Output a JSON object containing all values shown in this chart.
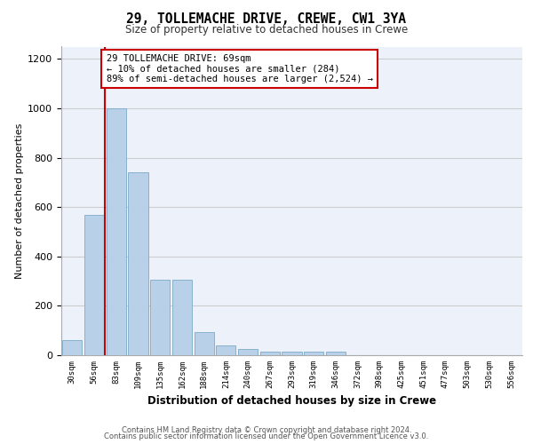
{
  "title1": "29, TOLLEMACHE DRIVE, CREWE, CW1 3YA",
  "title2": "Size of property relative to detached houses in Crewe",
  "xlabel": "Distribution of detached houses by size in Crewe",
  "ylabel": "Number of detached properties",
  "categories": [
    "30sqm",
    "56sqm",
    "83sqm",
    "109sqm",
    "135sqm",
    "162sqm",
    "188sqm",
    "214sqm",
    "240sqm",
    "267sqm",
    "293sqm",
    "319sqm",
    "346sqm",
    "372sqm",
    "398sqm",
    "425sqm",
    "451sqm",
    "477sqm",
    "503sqm",
    "530sqm",
    "556sqm"
  ],
  "values": [
    60,
    570,
    1000,
    740,
    305,
    305,
    95,
    38,
    25,
    14,
    14,
    14,
    14,
    0,
    0,
    0,
    0,
    0,
    0,
    0,
    0
  ],
  "bar_color": "#b8d0e8",
  "bar_edge_color": "#7aaac8",
  "vline_color": "#cc0000",
  "vline_x": 1.5,
  "annotation_text": "29 TOLLEMACHE DRIVE: 69sqm\n← 10% of detached houses are smaller (284)\n89% of semi-detached houses are larger (2,524) →",
  "annotation_box_color": "#ffffff",
  "annotation_border_color": "#cc0000",
  "ylim": [
    0,
    1250
  ],
  "yticks": [
    0,
    200,
    400,
    600,
    800,
    1000,
    1200
  ],
  "grid_color": "#cccccc",
  "background_color": "#edf2fa",
  "footer1": "Contains HM Land Registry data © Crown copyright and database right 2024.",
  "footer2": "Contains public sector information licensed under the Open Government Licence v3.0."
}
